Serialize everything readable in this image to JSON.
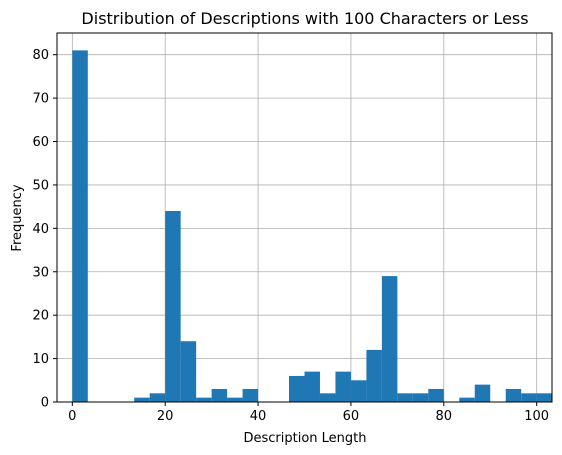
{
  "chart_data": {
    "type": "bar",
    "title": "Distribution of Descriptions with 100 Characters or Less",
    "xlabel": "Description Length",
    "ylabel": "Frequency",
    "xlim": [
      -3.3,
      103.3
    ],
    "ylim": [
      0,
      85
    ],
    "xticks": [
      0,
      20,
      40,
      60,
      80,
      100
    ],
    "yticks": [
      0,
      10,
      20,
      30,
      40,
      50,
      60,
      70,
      80
    ],
    "grid": true,
    "bar_color": "#1f77b4",
    "bin_start": 0,
    "bin_width": 3.3333,
    "values": [
      81,
      0,
      0,
      0,
      1,
      2,
      44,
      14,
      1,
      3,
      1,
      3,
      0,
      0,
      6,
      7,
      2,
      7,
      5,
      12,
      29,
      2,
      2,
      3,
      0,
      1,
      4,
      0,
      3,
      2,
      2
    ]
  }
}
